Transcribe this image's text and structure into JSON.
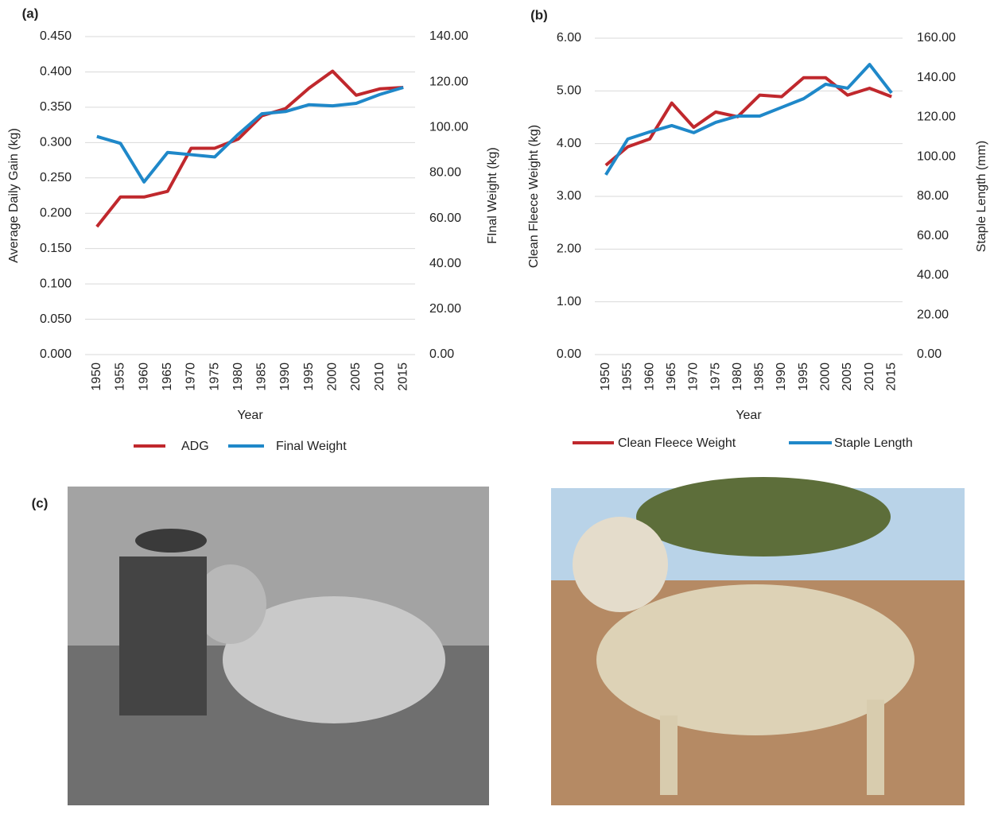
{
  "chart_data": [
    {
      "type": "line",
      "panel_label": "(a)",
      "categories": [
        "1950",
        "1955",
        "1960",
        "1965",
        "1970",
        "1975",
        "1980",
        "1985",
        "1990",
        "1995",
        "2000",
        "2005",
        "2010",
        "2015"
      ],
      "xlabel": "Year",
      "ylabel": "Average Daily Gain (kg)",
      "y2label": "FInal Weight (kg)",
      "series": [
        {
          "name": "ADG",
          "color": "#c0282d",
          "values": [
            0.181,
            0.223,
            0.223,
            0.231,
            0.292,
            0.292,
            0.305,
            0.338,
            0.348,
            0.377,
            0.401,
            0.367,
            0.376,
            0.378
          ]
        },
        {
          "name": "Final Weight",
          "color": "#1f88c9",
          "axis": "y2",
          "values": [
            96,
            93,
            76,
            89,
            88,
            87,
            97,
            106,
            107,
            110,
            109.5,
            110.6,
            114.5,
            117.6
          ]
        }
      ],
      "ylim": [
        0,
        0.45
      ],
      "yticks": [
        {
          "value": 0,
          "label": "0.000"
        },
        {
          "value": 0.05,
          "label": "0.050"
        },
        {
          "value": 0.1,
          "label": "0.100"
        },
        {
          "value": 0.15,
          "label": "0.150"
        },
        {
          "value": 0.2,
          "label": "0.200"
        },
        {
          "value": 0.25,
          "label": "0.250"
        },
        {
          "value": 0.3,
          "label": "0.300"
        },
        {
          "value": 0.35,
          "label": "0.350"
        },
        {
          "value": 0.4,
          "label": "0.400"
        },
        {
          "value": 0.45,
          "label": "0.450"
        }
      ],
      "y2lim": [
        0,
        140
      ],
      "y2ticks": [
        {
          "value": 0,
          "label": "0.00"
        },
        {
          "value": 20,
          "label": "20.00"
        },
        {
          "value": 40,
          "label": "40.00"
        },
        {
          "value": 60,
          "label": "60.00"
        },
        {
          "value": 80,
          "label": "80.00"
        },
        {
          "value": 100,
          "label": "100.00"
        },
        {
          "value": 120,
          "label": "120.00"
        },
        {
          "value": 140,
          "label": "140.00"
        }
      ],
      "grid": true,
      "legend": "bottom"
    },
    {
      "type": "line",
      "panel_label": "(b)",
      "categories": [
        "1950",
        "1955",
        "1960",
        "1965",
        "1970",
        "1975",
        "1980",
        "1985",
        "1990",
        "1995",
        "2000",
        "2005",
        "2010",
        "2015"
      ],
      "xlabel": "Year",
      "ylabel": "Clean Fleece Weight (kg)",
      "y2label": "Staple Length (mm)",
      "series": [
        {
          "name": "Clean Fleece Weight",
          "color": "#c0282d",
          "values": [
            3.59,
            3.94,
            4.09,
            4.77,
            4.31,
            4.6,
            4.51,
            4.92,
            4.89,
            5.25,
            5.25,
            4.92,
            5.05,
            4.89
          ]
        },
        {
          "name": "Staple Length",
          "color": "#1f88c9",
          "axis": "y2",
          "values": [
            90.9,
            109,
            112.6,
            115.8,
            112.2,
            117.4,
            120.6,
            120.6,
            125,
            129.4,
            136.7,
            134.7,
            146.7,
            132.3
          ]
        }
      ],
      "ylim": [
        0,
        6
      ],
      "yticks": [
        {
          "value": 0,
          "label": "0.00"
        },
        {
          "value": 1,
          "label": "1.00"
        },
        {
          "value": 2,
          "label": "2.00"
        },
        {
          "value": 3,
          "label": "3.00"
        },
        {
          "value": 4,
          "label": "4.00"
        },
        {
          "value": 5,
          "label": "5.00"
        },
        {
          "value": 6,
          "label": "6.00"
        }
      ],
      "y2lim": [
        0,
        160
      ],
      "y2ticks": [
        {
          "value": 0,
          "label": "0.00"
        },
        {
          "value": 20,
          "label": "20.00"
        },
        {
          "value": 40,
          "label": "40.00"
        },
        {
          "value": 60,
          "label": "60.00"
        },
        {
          "value": 80,
          "label": "80.00"
        },
        {
          "value": 100,
          "label": "100.00"
        },
        {
          "value": 120,
          "label": "120.00"
        },
        {
          "value": 140,
          "label": "140.00"
        },
        {
          "value": 160,
          "label": "160.00"
        }
      ],
      "grid": true,
      "legend": "bottom"
    }
  ],
  "photos": {
    "panel_label": "(c)"
  }
}
